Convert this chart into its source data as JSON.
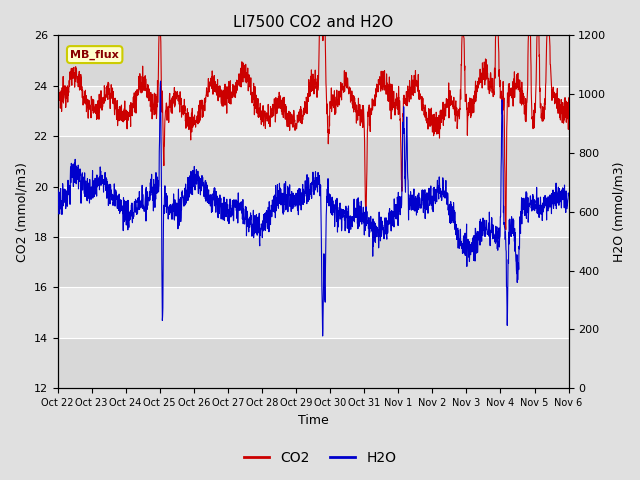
{
  "title": "LI7500 CO2 and H2O",
  "xlabel": "Time",
  "ylabel_left": "CO2 (mmol/m3)",
  "ylabel_right": "H2O (mmol/m3)",
  "ylim_left": [
    12,
    26
  ],
  "ylim_right": [
    0,
    1200
  ],
  "yticks_left": [
    12,
    14,
    16,
    18,
    20,
    22,
    24,
    26
  ],
  "yticks_right": [
    0,
    200,
    400,
    600,
    800,
    1000,
    1200
  ],
  "xtick_labels": [
    "Oct 22",
    "Oct 23",
    "Oct 24",
    "Oct 25",
    "Oct 26",
    "Oct 27",
    "Oct 28",
    "Oct 29",
    "Oct 30",
    "Oct 31",
    "Nov 1",
    "Nov 2",
    "Nov 3",
    "Nov 4",
    "Nov 5",
    "Nov 6"
  ],
  "co2_color": "#cc0000",
  "h2o_color": "#0000cc",
  "bg_color": "#e0e0e0",
  "plot_bg_color": "#e8e8e8",
  "legend_label": "MB_flux",
  "legend_box_color": "#ffffcc",
  "legend_box_edge": "#cccc00",
  "title_fontsize": 11,
  "axis_label_fontsize": 9,
  "tick_fontsize": 8,
  "line_width": 0.8,
  "n_points": 2000
}
